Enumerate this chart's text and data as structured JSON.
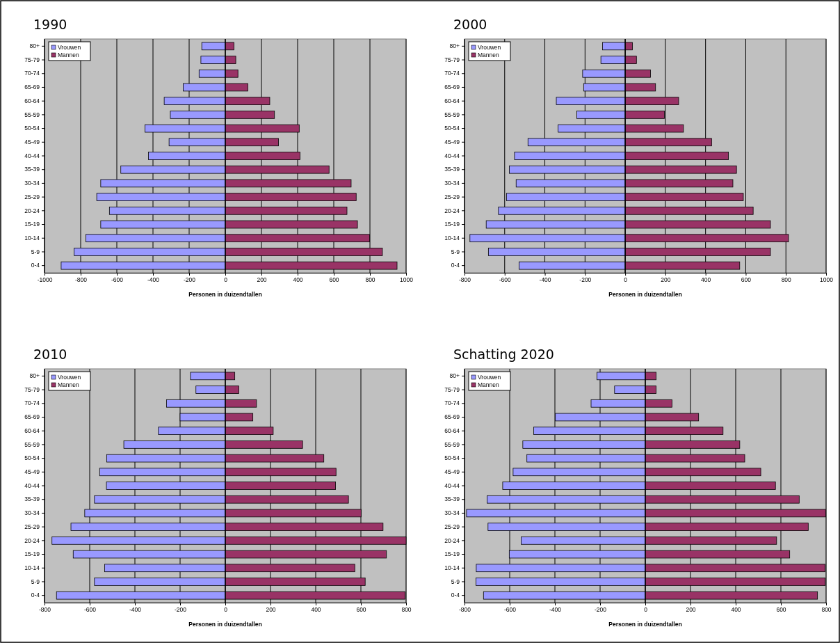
{
  "chart_data": [
    {
      "type": "bar",
      "orientation": "horizontal",
      "title": "1990",
      "stacked": true,
      "xlabel": "Personen in duizendtallen",
      "categories": [
        "80+",
        "75-79",
        "70-74",
        "65-69",
        "60-64",
        "55-59",
        "50-54",
        "45-49",
        "40-44",
        "35-39",
        "30-34",
        "25-29",
        "20-24",
        "15-19",
        "10-14",
        "5-9",
        "0-4"
      ],
      "series": [
        {
          "name": "Vrouwen",
          "color": "#9999ff",
          "values": [
            -130,
            -135,
            -145,
            -233,
            -338,
            -304,
            -444,
            -311,
            -425,
            -578,
            -689,
            -711,
            -641,
            -689,
            -771,
            -836,
            -908
          ]
        },
        {
          "name": "Mannen",
          "color": "#993366",
          "values": [
            48,
            58,
            70,
            125,
            246,
            272,
            409,
            294,
            413,
            574,
            696,
            724,
            673,
            731,
            798,
            869,
            950
          ]
        }
      ],
      "xlim": [
        -1000,
        1000
      ],
      "xticks": [
        -1000,
        -800,
        -600,
        -400,
        -200,
        0,
        200,
        400,
        600,
        800,
        1000
      ],
      "grid": "x",
      "legend": "top left"
    },
    {
      "type": "bar",
      "orientation": "horizontal",
      "title": "2000",
      "stacked": true,
      "xlabel": "Personen in duizendtallen",
      "categories": [
        "80+",
        "75-79",
        "70-74",
        "65-69",
        "60-64",
        "55-59",
        "50-54",
        "45-49",
        "40-44",
        "35-39",
        "30-34",
        "25-29",
        "20-24",
        "15-19",
        "10-14",
        "5-9",
        "0-4"
      ],
      "series": [
        {
          "name": "Vrouwen",
          "color": "#9999ff",
          "values": [
            -113,
            -121,
            -212,
            -207,
            -343,
            -241,
            -334,
            -484,
            -551,
            -577,
            -543,
            -591,
            -631,
            -692,
            -773,
            -681,
            -528
          ]
        },
        {
          "name": "Mannen",
          "color": "#993366",
          "values": [
            36,
            56,
            126,
            151,
            266,
            195,
            290,
            430,
            514,
            554,
            536,
            588,
            637,
            723,
            813,
            723,
            570
          ]
        }
      ],
      "xlim": [
        -800,
        1000
      ],
      "xticks": [
        -800,
        -600,
        -400,
        -200,
        0,
        200,
        400,
        600,
        800,
        1000
      ],
      "grid": "x",
      "legend": "top left"
    },
    {
      "type": "bar",
      "orientation": "horizontal",
      "title": "2010",
      "stacked": true,
      "xlabel": "Personen in duizendtallen",
      "categories": [
        "80+",
        "75-79",
        "70-74",
        "65-69",
        "60-64",
        "55-59",
        "50-54",
        "45-49",
        "40-44",
        "35-39",
        "30-34",
        "25-29",
        "20-24",
        "15-19",
        "10-14",
        "5-9",
        "0-4"
      ],
      "series": [
        {
          "name": "Vrouwen",
          "color": "#9999ff",
          "values": [
            -154,
            -130,
            -260,
            -200,
            -296,
            -449,
            -525,
            -556,
            -526,
            -579,
            -622,
            -683,
            -767,
            -673,
            -534,
            -579,
            -747
          ]
        },
        {
          "name": "Mannen",
          "color": "#993366",
          "values": [
            42,
            60,
            138,
            122,
            212,
            342,
            436,
            490,
            488,
            545,
            601,
            698,
            800,
            713,
            573,
            619,
            795
          ]
        }
      ],
      "xlim": [
        -800,
        800
      ],
      "xticks": [
        -800,
        -600,
        -400,
        -200,
        0,
        200,
        400,
        600,
        800
      ],
      "grid": "x",
      "legend": "top left"
    },
    {
      "type": "bar",
      "orientation": "horizontal",
      "title": "Schatting 2020",
      "stacked": true,
      "xlabel": "Personen in duizendtallen",
      "categories": [
        "80+",
        "75-79",
        "70-74",
        "65-69",
        "60-64",
        "55-59",
        "50-54",
        "45-49",
        "40-44",
        "35-39",
        "30-34",
        "25-29",
        "20-24",
        "15-19",
        "10-14",
        "5-9",
        "0-4"
      ],
      "series": [
        {
          "name": "Vrouwen",
          "color": "#9999ff",
          "values": [
            -214,
            -136,
            -240,
            -398,
            -494,
            -542,
            -524,
            -585,
            -631,
            -700,
            -791,
            -696,
            -549,
            -602,
            -748,
            -749,
            -716
          ]
        },
        {
          "name": "Mannen",
          "color": "#993366",
          "values": [
            48,
            48,
            118,
            236,
            344,
            418,
            440,
            511,
            576,
            681,
            798,
            721,
            581,
            639,
            795,
            796,
            762
          ]
        }
      ],
      "xlim": [
        -800,
        800
      ],
      "xticks": [
        -800,
        -600,
        -400,
        -200,
        0,
        200,
        400,
        600,
        800
      ],
      "grid": "x",
      "legend": "top left"
    }
  ]
}
